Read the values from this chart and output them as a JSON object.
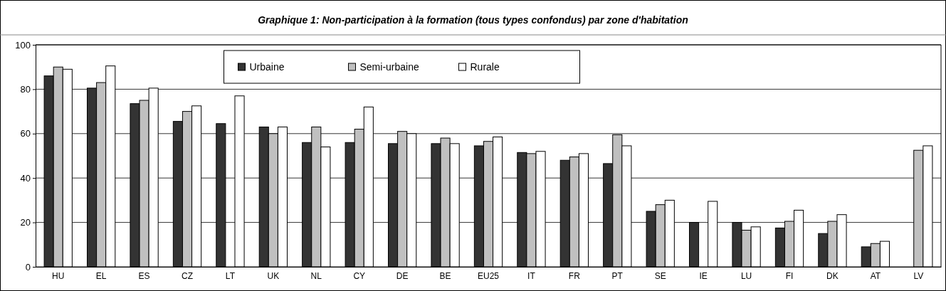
{
  "chart_data": {
    "type": "bar",
    "title": "Graphique 1: Non-participation à la formation (tous types confondus) par zone d'habitation",
    "categories": [
      "HU",
      "EL",
      "ES",
      "CZ",
      "LT",
      "UK",
      "NL",
      "CY",
      "DE",
      "BE",
      "EU25",
      "IT",
      "FR",
      "PT",
      "SE",
      "IE",
      "LU",
      "FI",
      "DK",
      "AT",
      "LV"
    ],
    "series": [
      {
        "name": "Urbaine",
        "color": "#333333",
        "values": [
          86,
          80.5,
          73.5,
          65.5,
          64.5,
          63,
          56,
          56,
          55.5,
          55.5,
          54.5,
          51.5,
          48,
          46.5,
          25,
          20,
          20,
          17.5,
          15,
          9,
          null
        ]
      },
      {
        "name": "Semi-urbaine",
        "color": "#c0c0c0",
        "values": [
          90,
          83,
          75,
          70,
          null,
          60,
          63,
          62,
          61,
          58,
          56.5,
          51,
          49.5,
          59.5,
          28,
          null,
          16.5,
          20.5,
          20.5,
          10.5,
          52.5
        ]
      },
      {
        "name": "Rurale",
        "color": "#ffffff",
        "values": [
          89,
          90.5,
          80.5,
          72.5,
          77,
          63,
          54,
          72,
          60,
          55.5,
          58.5,
          52,
          51,
          54.5,
          30,
          29.5,
          18,
          25.5,
          23.5,
          11.5,
          54.5
        ]
      }
    ],
    "ylim": [
      0,
      100
    ],
    "yticks": [
      0,
      20,
      40,
      60,
      80,
      100
    ],
    "grid": "y",
    "legend": "top"
  }
}
